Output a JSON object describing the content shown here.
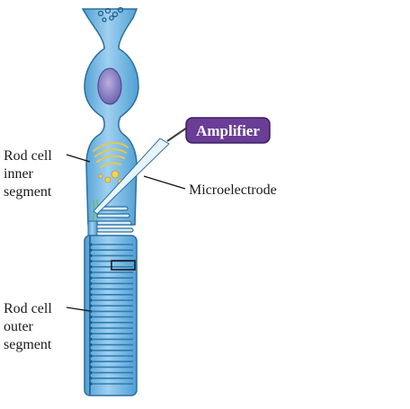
{
  "labels": {
    "amplifier": "Amplifier",
    "microelectrode": "Microelectrode",
    "inner_segment": [
      "Rod cell",
      "inner",
      "segment"
    ],
    "outer_segment": [
      "Rod cell",
      "outer",
      "segment"
    ]
  },
  "colors": {
    "cell_fill": "#6fb6e3",
    "cell_light": "#a9d6f2",
    "cell_outline": "#2a6f9e",
    "nucleus": "#8f86c4",
    "amplifier_box": "#6a3d96",
    "golgi": "#e6c84a",
    "text": "#1a1a1a"
  },
  "icons": [
    "microelectrode-icon",
    "rod-cell-icon",
    "nucleus-icon"
  ]
}
